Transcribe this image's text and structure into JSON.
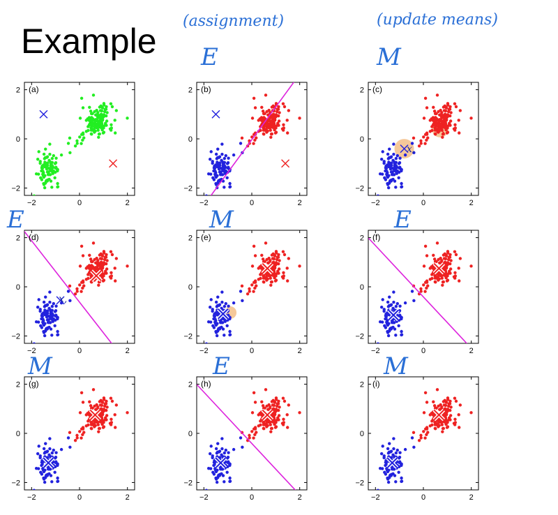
{
  "title": "Example",
  "annotations": {
    "assignment": "(assignment)",
    "update": "(update means)",
    "e1": "E",
    "m1": "M",
    "e2": "E",
    "m2": "M",
    "e3": "E",
    "m3": "M",
    "e4": "E",
    "m4": "M",
    "x_note": "x,"
  },
  "colors": {
    "cluster1": "#2222dd",
    "cluster2": "#ee2222",
    "unassigned": "#22ee22",
    "boundary": "#dd22dd",
    "highlight": "#f5c89a"
  },
  "chart_data": [
    {
      "label": "(a)",
      "type": "scatter",
      "assigned": false,
      "boundary": null,
      "centroids": [
        {
          "x": -1.5,
          "y": 1.0,
          "color": "blue",
          "style": "thin"
        },
        {
          "x": 1.4,
          "y": -1.0,
          "color": "red",
          "style": "thin"
        }
      ],
      "xlim": [
        -2.3,
        2.3
      ],
      "ylim": [
        -2.3,
        2.3
      ],
      "xticks": [
        -2,
        0,
        2
      ],
      "yticks": [
        -2,
        0,
        2
      ]
    },
    {
      "label": "(b)",
      "type": "scatter",
      "assigned": true,
      "boundary": {
        "x1": -1.85,
        "y1": -2.5,
        "x2": 1.9,
        "y2": 2.5
      },
      "centroids": [
        {
          "x": -1.5,
          "y": 1.0,
          "color": "blue",
          "style": "thin"
        },
        {
          "x": 1.4,
          "y": -1.0,
          "color": "red",
          "style": "thin"
        }
      ],
      "xlim": [
        -2.3,
        2.3
      ],
      "ylim": [
        -2.3,
        2.3
      ],
      "xticks": [
        -2,
        0,
        2
      ],
      "yticks": [
        -2,
        0,
        2
      ]
    },
    {
      "label": "(c)",
      "type": "scatter",
      "assigned": true,
      "boundary": null,
      "centroids": [
        {
          "x": -0.8,
          "y": -0.4,
          "color": "blue",
          "style": "thin"
        },
        {
          "x": 0.7,
          "y": 0.4,
          "color": "red",
          "style": "thin"
        }
      ],
      "xlim": [
        -2.3,
        2.3
      ],
      "ylim": [
        -2.3,
        2.3
      ],
      "xticks": [
        -2,
        0,
        2
      ],
      "yticks": [
        -2,
        0,
        2
      ]
    },
    {
      "label": "(d)",
      "type": "scatter",
      "assigned": true,
      "boundary": {
        "x1": -2.5,
        "y1": 2.5,
        "x2": 1.5,
        "y2": -2.5
      },
      "centroids": [
        {
          "x": -0.8,
          "y": -0.55,
          "color": "blue",
          "style": "thin"
        },
        {
          "x": 0.7,
          "y": 0.45,
          "color": "red",
          "style": "bold"
        }
      ],
      "xlim": [
        -2.3,
        2.3
      ],
      "ylim": [
        -2.3,
        2.3
      ],
      "xticks": [
        -2,
        0,
        2
      ],
      "yticks": [
        -2,
        0,
        2
      ]
    },
    {
      "label": "(e)",
      "type": "scatter",
      "assigned": true,
      "boundary": null,
      "centroids": [
        {
          "x": -1.2,
          "y": -1.1,
          "color": "blue",
          "style": "bold"
        },
        {
          "x": 0.65,
          "y": 0.75,
          "color": "red",
          "style": "bold"
        }
      ],
      "xlim": [
        -2.3,
        2.3
      ],
      "ylim": [
        -2.3,
        2.3
      ],
      "xticks": [
        -2,
        0,
        2
      ],
      "yticks": [
        -2,
        0,
        2
      ]
    },
    {
      "label": "(f)",
      "type": "scatter",
      "assigned": true,
      "boundary": {
        "x1": -2.5,
        "y1": 2.2,
        "x2": 2.0,
        "y2": -2.5
      },
      "centroids": [
        {
          "x": -1.25,
          "y": -1.15,
          "color": "blue",
          "style": "bold"
        },
        {
          "x": 0.65,
          "y": 0.75,
          "color": "red",
          "style": "bold"
        }
      ],
      "xlim": [
        -2.3,
        2.3
      ],
      "ylim": [
        -2.3,
        2.3
      ],
      "xticks": [
        -2,
        0,
        2
      ],
      "yticks": [
        -2,
        0,
        2
      ]
    },
    {
      "label": "(g)",
      "type": "scatter",
      "assigned": true,
      "boundary": null,
      "centroids": [
        {
          "x": -1.3,
          "y": -1.2,
          "color": "blue",
          "style": "bold"
        },
        {
          "x": 0.65,
          "y": 0.75,
          "color": "red",
          "style": "bold"
        }
      ],
      "xlim": [
        -2.3,
        2.3
      ],
      "ylim": [
        -2.3,
        2.3
      ],
      "xticks": [
        -2,
        0,
        2
      ],
      "yticks": [
        -2,
        0,
        2
      ]
    },
    {
      "label": "(h)",
      "type": "scatter",
      "assigned": true,
      "boundary": {
        "x1": -2.5,
        "y1": 2.2,
        "x2": 2.0,
        "y2": -2.5
      },
      "centroids": [
        {
          "x": -1.3,
          "y": -1.2,
          "color": "blue",
          "style": "bold"
        },
        {
          "x": 0.65,
          "y": 0.75,
          "color": "red",
          "style": "bold"
        }
      ],
      "xlim": [
        -2.3,
        2.3
      ],
      "ylim": [
        -2.3,
        2.3
      ],
      "xticks": [
        -2,
        0,
        2
      ],
      "yticks": [
        -2,
        0,
        2
      ]
    },
    {
      "label": "(i)",
      "type": "scatter",
      "assigned": true,
      "boundary": null,
      "centroids": [
        {
          "x": -1.3,
          "y": -1.2,
          "color": "blue",
          "style": "bold"
        },
        {
          "x": 0.65,
          "y": 0.75,
          "color": "red",
          "style": "bold"
        }
      ],
      "xlim": [
        -2.3,
        2.3
      ],
      "ylim": [
        -2.3,
        2.3
      ],
      "xticks": [
        -2,
        0,
        2
      ],
      "yticks": [
        -2,
        0,
        2
      ]
    }
  ]
}
